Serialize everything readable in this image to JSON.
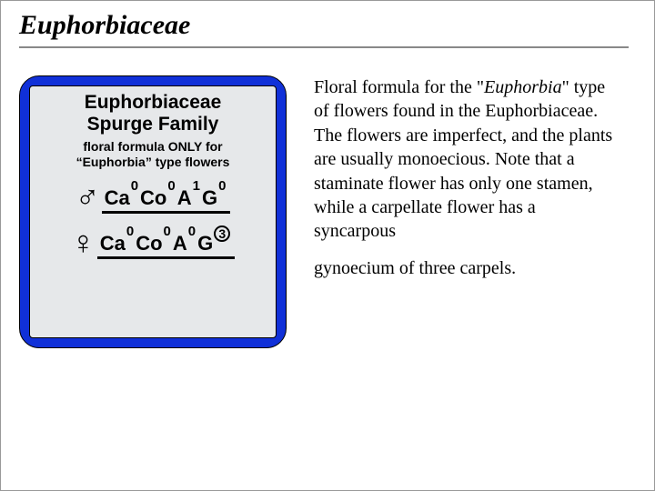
{
  "title": "Euphorbiaceae",
  "card": {
    "title_line1": "Euphorbiaceae",
    "title_line2": "Spurge Family",
    "sub_line1": "floral formula ONLY for",
    "sub_line2": "“Euphorbia” type flowers",
    "bg_color": "#1030d8",
    "inner_bg": "#e6e8ea",
    "formulas": [
      {
        "gender": "♂",
        "segments": [
          {
            "base": "Ca",
            "sup": "0"
          },
          {
            "base": "Co",
            "sup": "0"
          },
          {
            "base": "A",
            "sup": "1"
          },
          {
            "base": "G",
            "sup": "0"
          }
        ]
      },
      {
        "gender": "♀",
        "segments": [
          {
            "base": "Ca",
            "sup": "0"
          },
          {
            "base": "Co",
            "sup": "0"
          },
          {
            "base": "A",
            "sup": "0"
          },
          {
            "base": "G",
            "sup": "3",
            "circled": true
          }
        ]
      }
    ]
  },
  "right": {
    "p1_pre": "Floral formula for the \"",
    "p1_ital": "Euphorbia",
    "p1_post": "\" type of flowers found in the Euphorbiaceae. The flowers are imperfect, and the plants are usually monoecious. Note that a staminate flower has only one stamen, while a carpellate flower has a syncarpous",
    "p2": "gynoecium of three carpels."
  }
}
